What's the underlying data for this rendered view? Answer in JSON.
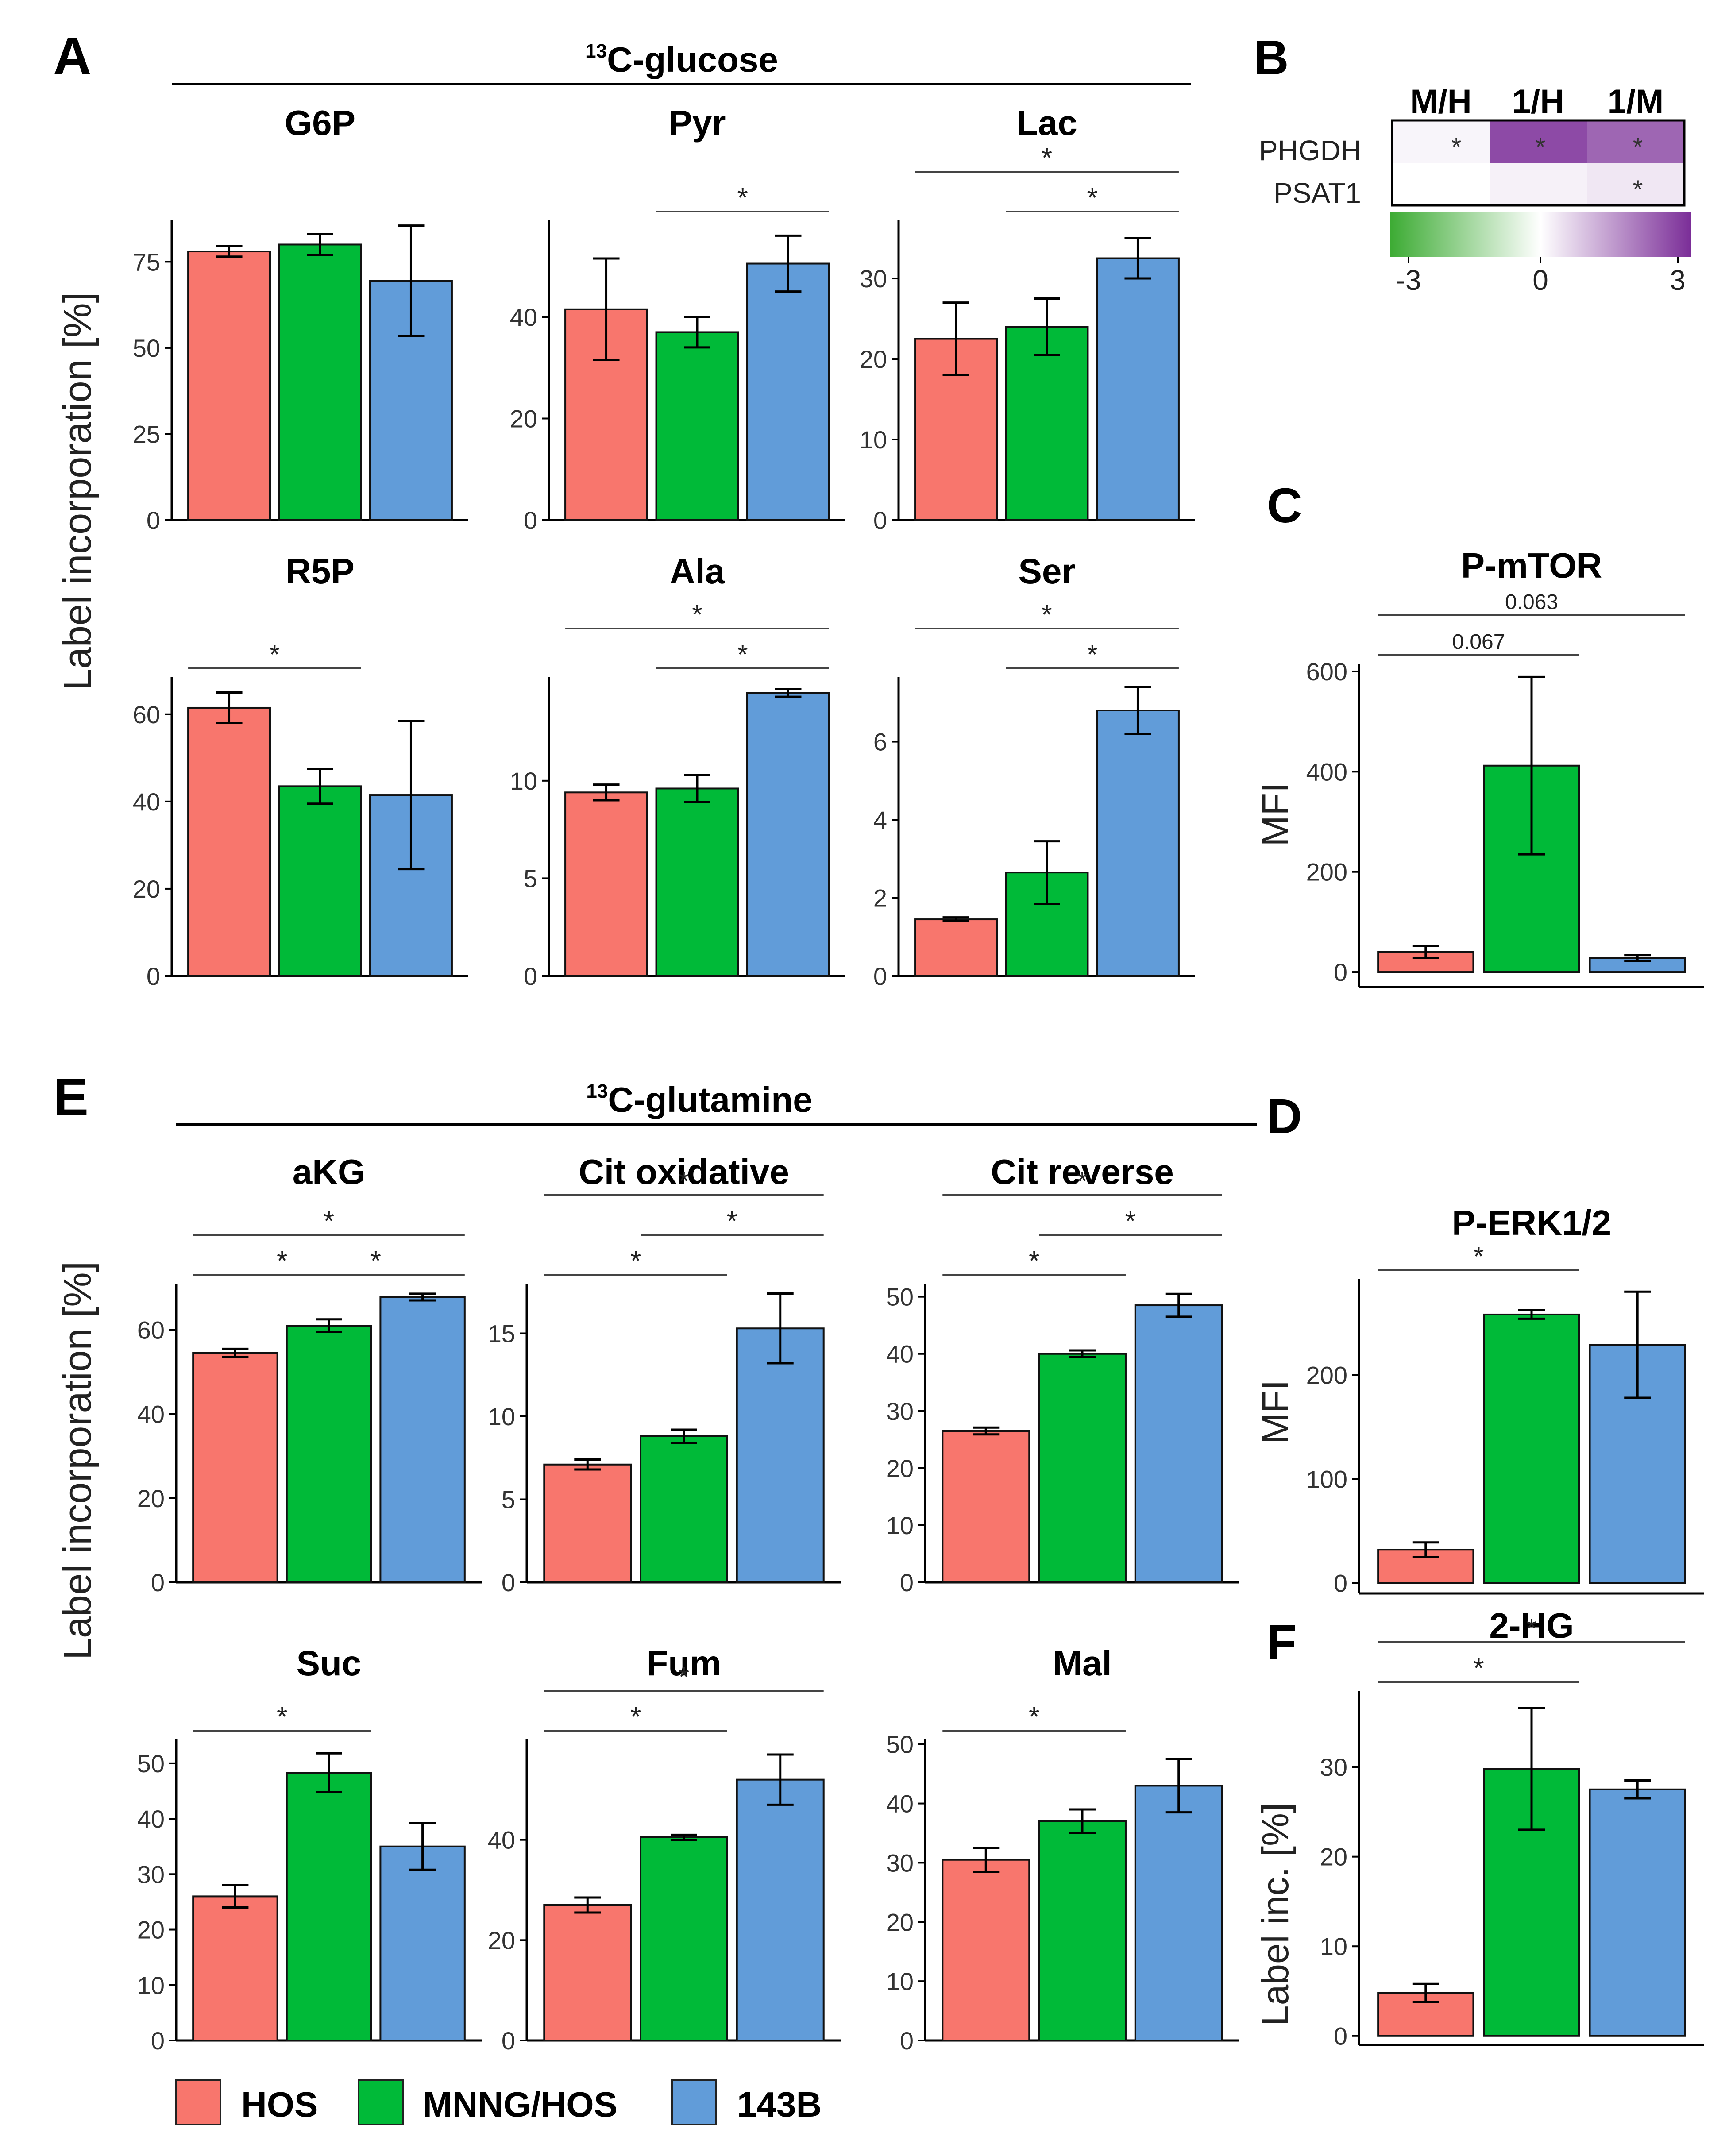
{
  "panel_letters": {
    "A": "A",
    "B": "B",
    "C": "C",
    "D": "D",
    "E": "E",
    "F": "F"
  },
  "section_headers": {
    "glucose": {
      "sup": "13",
      "text": "C-glucose"
    },
    "glutamine": {
      "sup": "13",
      "text": "C-glutamine"
    }
  },
  "y_labels": {
    "A": "Label incorporation [%]",
    "E": "Label incorporation [%]",
    "C": "MFI",
    "D": "MFI",
    "F": "Label inc. [%]"
  },
  "legend": [
    {
      "label": "HOS",
      "color": "#f8766d"
    },
    {
      "label": "MNNG/HOS",
      "color": "#00ba38"
    },
    {
      "label": "143B",
      "color": "#619cd9"
    }
  ],
  "heatmap": {
    "columns": [
      "M/H",
      "1/H",
      "1/M"
    ],
    "rows": [
      "PHGDH",
      "PSAT1"
    ],
    "values": [
      [
        0.15,
        2.6,
        2.2
      ],
      [
        0.0,
        0.2,
        0.35
      ]
    ],
    "significant": [
      [
        "*",
        "*",
        "*"
      ],
      [
        "",
        "",
        "*"
      ]
    ],
    "scale_ticks": [
      "-3",
      "0",
      "3"
    ],
    "scale_range": [
      -3,
      3
    ],
    "low_color": "#3cab33",
    "mid_color": "#ffffff",
    "high_color": "#7b2e98"
  },
  "chart_data": [
    {
      "id": "g6p",
      "type": "bar",
      "title": "G6P",
      "categories": [
        "HOS",
        "MNNG/HOS",
        "143B"
      ],
      "values": [
        78,
        80,
        69.5
      ],
      "errors": [
        1.5,
        3,
        16
      ],
      "ylim": [
        0,
        87
      ],
      "ticks": [
        0,
        25,
        50,
        75
      ],
      "tick_labels": [
        "0",
        "25",
        "50",
        "75"
      ],
      "sig": []
    },
    {
      "id": "pyr",
      "type": "bar",
      "title": "Pyr",
      "categories": [
        "HOS",
        "MNNG/HOS",
        "143B"
      ],
      "values": [
        41.5,
        37,
        50.5
      ],
      "errors": [
        10,
        3,
        5.5
      ],
      "ylim": [
        0,
        59
      ],
      "ticks": [
        0,
        20,
        40
      ],
      "tick_labels": [
        "0",
        "20",
        "40"
      ],
      "sig": [
        {
          "from": 1,
          "to": 2,
          "label": "*",
          "level": 0
        }
      ]
    },
    {
      "id": "lac",
      "type": "bar",
      "title": "Lac",
      "categories": [
        "HOS",
        "MNNG/HOS",
        "143B"
      ],
      "values": [
        22.5,
        24,
        32.5
      ],
      "errors": [
        4.5,
        3.5,
        2.5
      ],
      "ylim": [
        0,
        37.2
      ],
      "ticks": [
        0,
        10,
        20,
        30
      ],
      "tick_labels": [
        "0",
        "10",
        "20",
        "30"
      ],
      "sig": [
        {
          "from": 1,
          "to": 2,
          "label": "*",
          "level": 0
        },
        {
          "from": 0,
          "to": 2,
          "label": "*",
          "level": 1
        }
      ]
    },
    {
      "id": "r5p",
      "type": "bar",
      "title": "R5P",
      "categories": [
        "HOS",
        "MNNG/HOS",
        "143B"
      ],
      "values": [
        61.5,
        43.5,
        41.5
      ],
      "errors": [
        3.5,
        4,
        17
      ],
      "ylim": [
        0,
        68.5
      ],
      "ticks": [
        0,
        20,
        40,
        60
      ],
      "tick_labels": [
        "0",
        "20",
        "40",
        "60"
      ],
      "sig": [
        {
          "from": 0,
          "to": 1,
          "label": "*",
          "level": 0
        }
      ]
    },
    {
      "id": "ala",
      "type": "bar",
      "title": "Ala",
      "categories": [
        "HOS",
        "MNNG/HOS",
        "143B"
      ],
      "values": [
        9.4,
        9.6,
        14.5
      ],
      "errors": [
        0.4,
        0.7,
        0.2
      ],
      "ylim": [
        0,
        15.3
      ],
      "ticks": [
        0,
        5,
        10
      ],
      "tick_labels": [
        "0",
        "5",
        "10"
      ],
      "sig": [
        {
          "from": 1,
          "to": 2,
          "label": "*",
          "level": 0
        },
        {
          "from": 0,
          "to": 2,
          "label": "*",
          "level": 1
        }
      ]
    },
    {
      "id": "ser",
      "type": "bar",
      "title": "Ser",
      "categories": [
        "HOS",
        "MNNG/HOS",
        "143B"
      ],
      "values": [
        1.45,
        2.65,
        6.8
      ],
      "errors": [
        0.05,
        0.8,
        0.6
      ],
      "ylim": [
        0,
        7.65
      ],
      "ticks": [
        0,
        2,
        4,
        6
      ],
      "tick_labels": [
        "0",
        "2",
        "4",
        "6"
      ],
      "sig": [
        {
          "from": 1,
          "to": 2,
          "label": "*",
          "level": 0
        },
        {
          "from": 0,
          "to": 2,
          "label": "*",
          "level": 1
        }
      ]
    },
    {
      "id": "mtor",
      "type": "bar",
      "title": "P-mTOR",
      "categories": [
        "HOS",
        "MNNG/HOS",
        "143B"
      ],
      "values": [
        40,
        412,
        28
      ],
      "errors": [
        12,
        177,
        6
      ],
      "ylim": [
        -30,
        615
      ],
      "ticks": [
        0,
        200,
        400,
        600
      ],
      "tick_labels": [
        "0",
        "200",
        "400",
        "600"
      ],
      "sig": [
        {
          "from": 0,
          "to": 1,
          "label": "0.067",
          "level": 0
        },
        {
          "from": 0,
          "to": 2,
          "label": "0.063",
          "level": 1
        }
      ]
    },
    {
      "id": "akg",
      "type": "bar",
      "title": "aKG",
      "categories": [
        "HOS",
        "MNNG/HOS",
        "143B"
      ],
      "values": [
        54.5,
        61,
        67.8
      ],
      "errors": [
        1,
        1.5,
        0.8
      ],
      "ylim": [
        0,
        71
      ],
      "ticks": [
        0,
        20,
        40,
        60
      ],
      "tick_labels": [
        "0",
        "20",
        "40",
        "60"
      ],
      "sig": [
        {
          "from": 0,
          "to": 1,
          "label": "*",
          "level": 0
        },
        {
          "from": 1,
          "to": 2,
          "label": "*",
          "level": 0
        },
        {
          "from": 0,
          "to": 2,
          "label": "*",
          "level": 1
        }
      ]
    },
    {
      "id": "citox",
      "type": "bar",
      "title": "Cit oxidative",
      "categories": [
        "HOS",
        "MNNG/HOS",
        "143B"
      ],
      "values": [
        7.1,
        8.8,
        15.3
      ],
      "errors": [
        0.3,
        0.4,
        2.1
      ],
      "ylim": [
        0,
        18
      ],
      "ticks": [
        0,
        5,
        10,
        15
      ],
      "tick_labels": [
        "0",
        "5",
        "10",
        "15"
      ],
      "sig": [
        {
          "from": 0,
          "to": 1,
          "label": "*",
          "level": 0
        },
        {
          "from": 1,
          "to": 2,
          "label": "*",
          "level": 1
        },
        {
          "from": 0,
          "to": 2,
          "label": "*",
          "level": 2
        }
      ]
    },
    {
      "id": "citrev",
      "type": "bar",
      "title": "Cit reverse",
      "categories": [
        "HOS",
        "MNNG/HOS",
        "143B"
      ],
      "values": [
        26.5,
        40,
        48.5
      ],
      "errors": [
        0.6,
        0.6,
        2
      ],
      "ylim": [
        0,
        52.3
      ],
      "ticks": [
        0,
        10,
        20,
        30,
        40,
        50
      ],
      "tick_labels": [
        "0",
        "10",
        "20",
        "30",
        "40",
        "50"
      ],
      "sig": [
        {
          "from": 0,
          "to": 1,
          "label": "*",
          "level": 0
        },
        {
          "from": 1,
          "to": 2,
          "label": "*",
          "level": 1
        },
        {
          "from": 0,
          "to": 2,
          "label": "*",
          "level": 2
        }
      ]
    },
    {
      "id": "erk",
      "type": "bar",
      "title": "P-ERK1/2",
      "categories": [
        "HOS",
        "MNNG/HOS",
        "143B"
      ],
      "values": [
        32,
        258,
        229
      ],
      "errors": [
        7,
        4,
        51
      ],
      "ylim": [
        -10,
        292
      ],
      "ticks": [
        0,
        100,
        200
      ],
      "tick_labels": [
        "0",
        "100",
        "200"
      ],
      "sig": [
        {
          "from": 0,
          "to": 1,
          "label": "*",
          "level": 0
        }
      ]
    },
    {
      "id": "suc",
      "type": "bar",
      "title": "Suc",
      "categories": [
        "HOS",
        "MNNG/HOS",
        "143B"
      ],
      "values": [
        26,
        48.3,
        35
      ],
      "errors": [
        2,
        3.5,
        4.2
      ],
      "ylim": [
        0,
        54.3
      ],
      "ticks": [
        0,
        10,
        20,
        30,
        40,
        50
      ],
      "tick_labels": [
        "0",
        "10",
        "20",
        "30",
        "40",
        "50"
      ],
      "sig": [
        {
          "from": 0,
          "to": 1,
          "label": "*",
          "level": 0
        }
      ]
    },
    {
      "id": "fum",
      "type": "bar",
      "title": "Fum",
      "categories": [
        "HOS",
        "MNNG/HOS",
        "143B"
      ],
      "values": [
        27,
        40.5,
        52
      ],
      "errors": [
        1.5,
        0.5,
        5
      ],
      "ylim": [
        0,
        60
      ],
      "ticks": [
        0,
        20,
        40
      ],
      "tick_labels": [
        "0",
        "20",
        "40"
      ],
      "sig": [
        {
          "from": 0,
          "to": 1,
          "label": "*",
          "level": 0
        },
        {
          "from": 0,
          "to": 2,
          "label": "*",
          "level": 1
        }
      ]
    },
    {
      "id": "mal",
      "type": "bar",
      "title": "Mal",
      "categories": [
        "HOS",
        "MNNG/HOS",
        "143B"
      ],
      "values": [
        30.5,
        37,
        43
      ],
      "errors": [
        2,
        2,
        4.5
      ],
      "ylim": [
        0,
        50.8
      ],
      "ticks": [
        0,
        10,
        20,
        30,
        40,
        50
      ],
      "tick_labels": [
        "0",
        "10",
        "20",
        "30",
        "40",
        "50"
      ],
      "sig": [
        {
          "from": 0,
          "to": 1,
          "label": "*",
          "level": 0
        }
      ]
    },
    {
      "id": "hg2",
      "type": "bar",
      "title": "2-HG",
      "categories": [
        "HOS",
        "MNNG/HOS",
        "143B"
      ],
      "values": [
        4.8,
        29.8,
        27.5
      ],
      "errors": [
        1,
        6.8,
        1
      ],
      "ylim": [
        -1,
        38.5
      ],
      "ticks": [
        0,
        10,
        20,
        30
      ],
      "tick_labels": [
        "0",
        "10",
        "20",
        "30"
      ],
      "sig": [
        {
          "from": 0,
          "to": 1,
          "label": "*",
          "level": 0
        },
        {
          "from": 0,
          "to": 2,
          "label": "*",
          "level": 1
        }
      ]
    }
  ]
}
